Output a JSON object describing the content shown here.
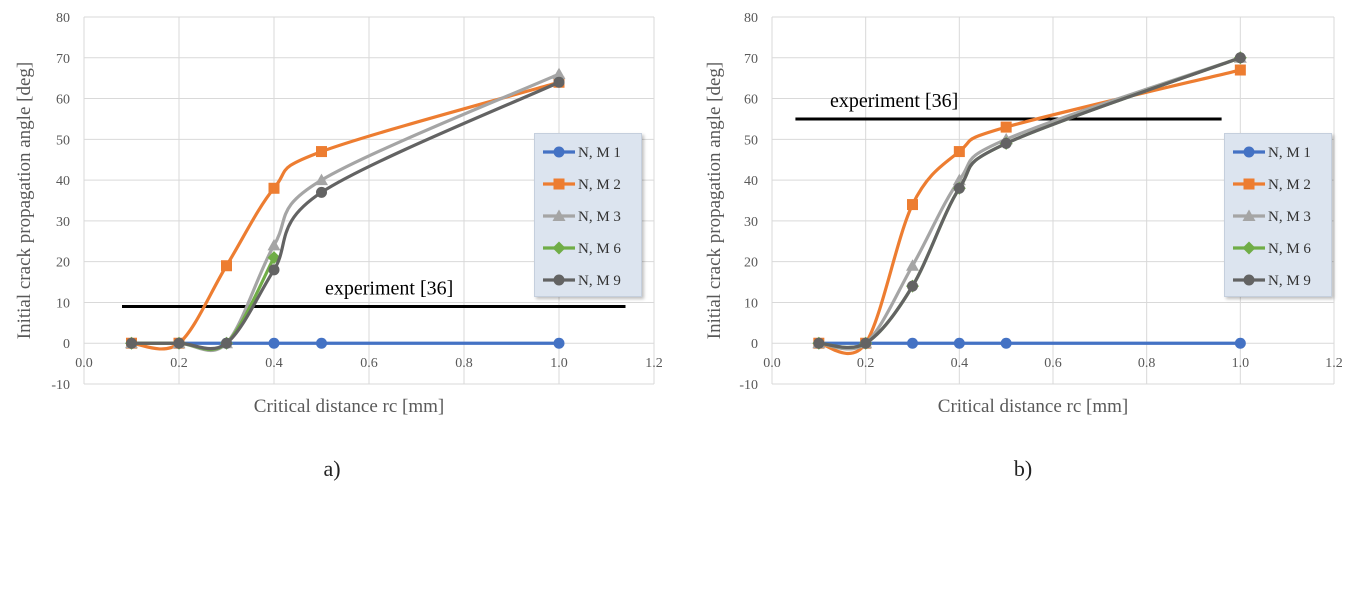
{
  "figure": {
    "panel_labels": [
      "a)",
      "b)"
    ]
  },
  "chart_data": [
    {
      "type": "line",
      "smooth": true,
      "xlabel": "Critical distance rc [mm]",
      "ylabel": "Initial crack propagation angle [deg]",
      "xlim": [
        0.0,
        1.2
      ],
      "ylim": [
        -10,
        80
      ],
      "xticks": [
        "0.0",
        "0.2",
        "0.4",
        "0.6",
        "0.8",
        "1.0",
        "1.2"
      ],
      "yticks": [
        "-10",
        "0",
        "10",
        "20",
        "30",
        "40",
        "50",
        "60",
        "70",
        "80"
      ],
      "grid": true,
      "legend_position": "right",
      "series": [
        {
          "name": "N, M 1",
          "color": "#4472c4",
          "marker": "circle",
          "points": [
            [
              0.1,
              0
            ],
            [
              0.2,
              0
            ],
            [
              0.3,
              0
            ],
            [
              0.4,
              0
            ],
            [
              0.5,
              0
            ],
            [
              1.0,
              0
            ]
          ]
        },
        {
          "name": "N, M 2",
          "color": "#ed7d31",
          "marker": "square",
          "points": [
            [
              0.1,
              0
            ],
            [
              0.2,
              0
            ],
            [
              0.3,
              19
            ],
            [
              0.4,
              38
            ],
            [
              0.5,
              47
            ],
            [
              1.0,
              64
            ]
          ]
        },
        {
          "name": "N, M 3",
          "color": "#a5a5a5",
          "marker": "triangle",
          "points": [
            [
              0.1,
              0
            ],
            [
              0.2,
              0
            ],
            [
              0.3,
              0
            ],
            [
              0.4,
              24
            ],
            [
              0.5,
              40
            ],
            [
              1.0,
              66
            ]
          ]
        },
        {
          "name": "N, M 6",
          "color": "#70ad47",
          "marker": "diamond",
          "points": [
            [
              0.1,
              0
            ],
            [
              0.2,
              0
            ],
            [
              0.3,
              0
            ],
            [
              0.4,
              21
            ]
          ]
        },
        {
          "name": "N, M 9",
          "color": "#636363",
          "marker": "circle",
          "points": [
            [
              0.1,
              0
            ],
            [
              0.2,
              0
            ],
            [
              0.3,
              0
            ],
            [
              0.4,
              18
            ],
            [
              0.5,
              37
            ],
            [
              1.0,
              64
            ]
          ]
        }
      ],
      "reference_line": {
        "label": "experiment [36]",
        "y": 9,
        "x_start": 0.08,
        "x_end": 1.14
      }
    },
    {
      "type": "line",
      "smooth": true,
      "xlabel": "Critical distance rc [mm]",
      "ylabel": "Initial crack propagation angle [deg]",
      "xlim": [
        0.0,
        1.2
      ],
      "ylim": [
        -10,
        80
      ],
      "xticks": [
        "0.0",
        "0.2",
        "0.4",
        "0.6",
        "0.8",
        "1.0",
        "1.2"
      ],
      "yticks": [
        "-10",
        "0",
        "10",
        "20",
        "30",
        "40",
        "50",
        "60",
        "70",
        "80"
      ],
      "grid": true,
      "legend_position": "right",
      "series": [
        {
          "name": "N, M 1",
          "color": "#4472c4",
          "marker": "circle",
          "points": [
            [
              0.1,
              0
            ],
            [
              0.2,
              0
            ],
            [
              0.3,
              0
            ],
            [
              0.4,
              0
            ],
            [
              0.5,
              0
            ],
            [
              1.0,
              0
            ]
          ]
        },
        {
          "name": "N, M 2",
          "color": "#ed7d31",
          "marker": "square",
          "points": [
            [
              0.1,
              0
            ],
            [
              0.2,
              0
            ],
            [
              0.3,
              34
            ],
            [
              0.4,
              47
            ],
            [
              0.5,
              53
            ],
            [
              1.0,
              67
            ]
          ]
        },
        {
          "name": "N, M 3",
          "color": "#a5a5a5",
          "marker": "triangle",
          "points": [
            [
              0.1,
              0
            ],
            [
              0.2,
              0
            ],
            [
              0.3,
              19
            ],
            [
              0.4,
              40
            ],
            [
              0.5,
              50
            ],
            [
              1.0,
              70
            ]
          ]
        },
        {
          "name": "N, M 6",
          "color": "#70ad47",
          "marker": "diamond",
          "points": [
            [
              0.1,
              0
            ],
            [
              0.2,
              0
            ],
            [
              0.3,
              14
            ],
            [
              0.4,
              38
            ],
            [
              0.5,
              49
            ],
            [
              1.0,
              70
            ]
          ]
        },
        {
          "name": "N, M 9",
          "color": "#636363",
          "marker": "circle",
          "points": [
            [
              0.1,
              0
            ],
            [
              0.2,
              0
            ],
            [
              0.3,
              14
            ],
            [
              0.4,
              38
            ],
            [
              0.5,
              49
            ],
            [
              1.0,
              70
            ]
          ]
        }
      ],
      "reference_line": {
        "label": "experiment [36]",
        "y": 55,
        "x_start": 0.05,
        "x_end": 0.96
      }
    }
  ]
}
